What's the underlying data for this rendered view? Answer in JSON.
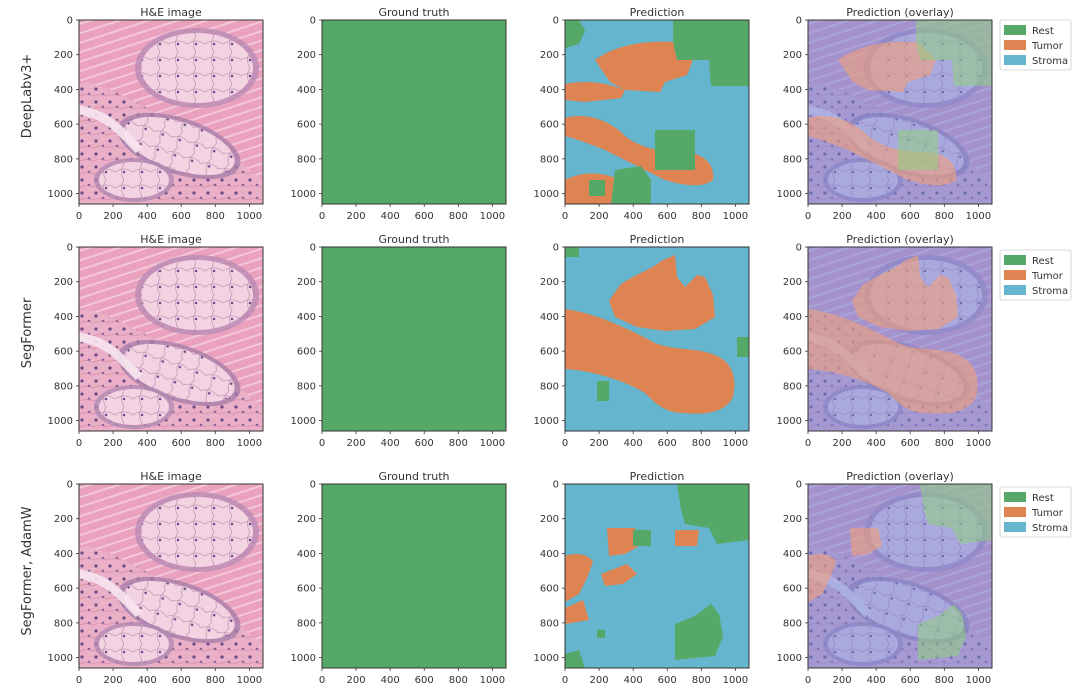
{
  "figure": {
    "colors": {
      "rest": "#55a868",
      "tumor": "#dd8452",
      "stroma": "#64b5cd",
      "he_bg": "#e7a3bd",
      "he_light": "#f4d6e4",
      "he_nuclei": "#5a3f7a"
    }
  },
  "rows": [
    {
      "label": "DeepLabv3+"
    },
    {
      "label": "SegFormer"
    },
    {
      "label": "SegFormer, AdamW"
    }
  ],
  "columns": [
    {
      "title": "H&E image"
    },
    {
      "title": "Ground truth"
    },
    {
      "title": "Prediction"
    },
    {
      "title": "Prediction (overlay)"
    }
  ],
  "legend": {
    "placement": "right of overlay panel",
    "items": [
      {
        "label": "Rest",
        "color": "#55a868"
      },
      {
        "label": "Tumor",
        "color": "#dd8452"
      },
      {
        "label": "Stroma",
        "color": "#64b5cd"
      }
    ]
  },
  "chart_data": {
    "type": "heatmap",
    "description_grid": "3x4 image panels",
    "xlim": [
      0,
      1080
    ],
    "ylim": [
      1060,
      0
    ],
    "x_ticks": [
      0,
      200,
      400,
      600,
      800,
      1000
    ],
    "y_ticks": [
      0,
      200,
      400,
      600,
      800,
      1000
    ],
    "classes": [
      "Rest",
      "Tumor",
      "Stroma"
    ],
    "ground_truth": "Rest"
  }
}
